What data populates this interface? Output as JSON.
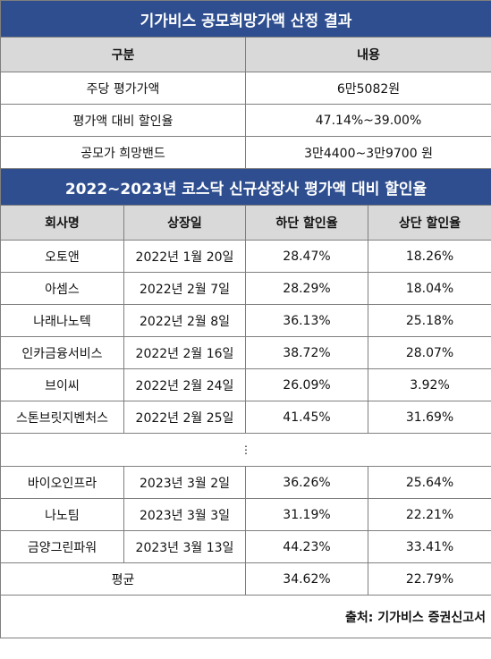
{
  "top": {
    "title": "기가비스 공모희망가액 산정 결과",
    "header": [
      "구분",
      "내용"
    ],
    "rows": [
      [
        "주당 평가가액",
        "6만5082원"
      ],
      [
        "평가액 대비 할인율",
        "47.14%~39.00%"
      ],
      [
        "공모가 희망밴드",
        "3만4400~3만9700 원"
      ]
    ]
  },
  "bottom": {
    "title": "2022~2023년 코스닥 신규상장사 평가액 대비 할인율",
    "header": [
      "회사명",
      "상장일",
      "하단 할인율",
      "상단 할인율"
    ],
    "rows_a": [
      [
        "오토앤",
        "2022년 1월 20일",
        "28.47%",
        "18.26%"
      ],
      [
        "아셈스",
        "2022년 2월 7일",
        "28.29%",
        "18.04%"
      ],
      [
        "나래나노텍",
        "2022년 2월 8일",
        "36.13%",
        "25.18%"
      ],
      [
        "인카금융서비스",
        "2022년 2월 16일",
        "38.72%",
        "28.07%"
      ],
      [
        "브이씨",
        "2022년 2월 24일",
        "26.09%",
        "3.92%"
      ],
      [
        "스톤브릿지벤처스",
        "2022년 2월 25일",
        "41.45%",
        "31.69%"
      ]
    ],
    "ellipsis": "⋮",
    "rows_b": [
      [
        "바이오인프라",
        "2023년 3월 2일",
        "36.26%",
        "25.64%"
      ],
      [
        "나노팀",
        "2023년 3월 3일",
        "31.19%",
        "22.21%"
      ],
      [
        "금양그린파워",
        "2023년 3월 13일",
        "44.23%",
        "33.41%"
      ]
    ],
    "average": [
      "평균",
      "34.62%",
      "22.79%"
    ]
  },
  "source": "출처: 기가비스 증권신고서"
}
